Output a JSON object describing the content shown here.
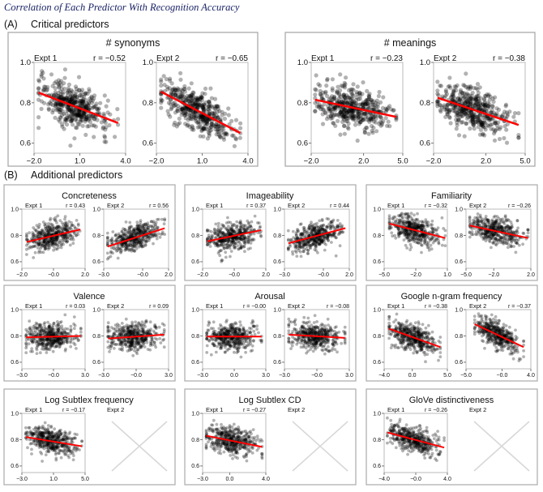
{
  "title": "Correlation of Each Predictor With Recognition Accuracy",
  "colors": {
    "points": "#000000",
    "fit_line": "#ff0000",
    "box_border": "#aaaaaa",
    "missing_cross": "#d8d8d8",
    "title": "#1b2466"
  },
  "chart_data": {
    "type": "scatter",
    "ylim": [
      0.55,
      1.0
    ],
    "yticks": [
      {
        "v": 1.0,
        "l": "1.0"
      },
      {
        "v": 0.8,
        "l": "0.8"
      },
      {
        "v": 0.6,
        "l": "0.6"
      }
    ],
    "sections": [
      {
        "letter": "(A)",
        "heading": "Critical predictors",
        "panels": [
          {
            "title": "# synonyms",
            "plots": [
              {
                "label": "Expt 1",
                "r": "r = −0.52",
                "xlim": [
                  -2,
                  4
                ],
                "xticks": [
                  {
                    "v": -2,
                    "l": "−2.0"
                  },
                  {
                    "v": 1,
                    "l": "1.0"
                  },
                  {
                    "v": 4,
                    "l": "4.0"
                  }
                ],
                "fit": [
                  [
                    -1.7,
                    0.85
                  ],
                  [
                    3.5,
                    0.7
                  ]
                ]
              },
              {
                "label": "Expt 2",
                "r": "r = −0.65",
                "xlim": [
                  -2,
                  4
                ],
                "xticks": [
                  {
                    "v": -2,
                    "l": "−2.0"
                  },
                  {
                    "v": 1,
                    "l": "1.0"
                  },
                  {
                    "v": 4,
                    "l": "4.0"
                  }
                ],
                "fit": [
                  [
                    -1.7,
                    0.855
                  ],
                  [
                    3.5,
                    0.65
                  ]
                ]
              }
            ]
          },
          {
            "title": "# meanings",
            "plots": [
              {
                "label": "Expt 1",
                "r": "r = −0.23",
                "xlim": [
                  -2,
                  5
                ],
                "xticks": [
                  {
                    "v": -2,
                    "l": "−2.0"
                  },
                  {
                    "v": 2,
                    "l": "2.0"
                  },
                  {
                    "v": 5,
                    "l": "5.0"
                  }
                ],
                "fit": [
                  [
                    -1.7,
                    0.815
                  ],
                  [
                    4.5,
                    0.73
                  ]
                ]
              },
              {
                "label": "Expt 2",
                "r": "r = −0.38",
                "xlim": [
                  -2,
                  5
                ],
                "xticks": [
                  {
                    "v": -2,
                    "l": "−2.0"
                  },
                  {
                    "v": 2,
                    "l": "2.0"
                  },
                  {
                    "v": 5,
                    "l": "5.0"
                  }
                ],
                "fit": [
                  [
                    -1.7,
                    0.825
                  ],
                  [
                    4.5,
                    0.69
                  ]
                ]
              }
            ]
          }
        ]
      },
      {
        "letter": "(B)",
        "heading": "Additional predictors",
        "panels": [
          {
            "title": "Concreteness",
            "plots": [
              {
                "label": "Expt 1",
                "r": "r = 0.43",
                "xlim": [
                  -2,
                  2
                ],
                "xticks": [
                  {
                    "v": -2,
                    "l": "−2.0"
                  },
                  {
                    "v": 0,
                    "l": "−0.0"
                  },
                  {
                    "v": 2,
                    "l": "2.0"
                  }
                ],
                "fit": [
                  [
                    -1.7,
                    0.75
                  ],
                  [
                    1.7,
                    0.845
                  ]
                ]
              },
              {
                "label": "Expt 2",
                "r": "r = 0.56",
                "xlim": [
                  -3,
                  2
                ],
                "xticks": [
                  {
                    "v": -3,
                    "l": "−3.0"
                  },
                  {
                    "v": 0,
                    "l": "−0.0"
                  },
                  {
                    "v": 2,
                    "l": "2.0"
                  }
                ],
                "fit": [
                  [
                    -2.7,
                    0.715
                  ],
                  [
                    1.7,
                    0.855
                  ]
                ]
              }
            ]
          },
          {
            "title": "Imageability",
            "plots": [
              {
                "label": "Expt 1",
                "r": "r = 0.37",
                "xlim": [
                  -2,
                  2
                ],
                "xticks": [
                  {
                    "v": -2,
                    "l": "−2.0"
                  },
                  {
                    "v": 0,
                    "l": "−0.0"
                  },
                  {
                    "v": 2,
                    "l": "2.0"
                  }
                ],
                "fit": [
                  [
                    -1.7,
                    0.755
                  ],
                  [
                    1.7,
                    0.84
                  ]
                ]
              },
              {
                "label": "Expt 2",
                "r": "r = 0.44",
                "xlim": [
                  -3,
                  2
                ],
                "xticks": [
                  {
                    "v": -3,
                    "l": "−3.0"
                  },
                  {
                    "v": 0,
                    "l": "−0.0"
                  },
                  {
                    "v": 2,
                    "l": "2.0"
                  }
                ],
                "fit": [
                  [
                    -2.7,
                    0.74
                  ],
                  [
                    1.7,
                    0.855
                  ]
                ]
              }
            ]
          },
          {
            "title": "Familiarity",
            "plots": [
              {
                "label": "Expt 1",
                "r": "r = −0.32",
                "xlim": [
                  -5,
                  1
                ],
                "xticks": [
                  {
                    "v": -5,
                    "l": "−5.0"
                  },
                  {
                    "v": -2,
                    "l": "−2.0"
                  },
                  {
                    "v": 1,
                    "l": "1.0"
                  }
                ],
                "fit": [
                  [
                    -4.5,
                    0.89
                  ],
                  [
                    0.8,
                    0.78
                  ]
                ]
              },
              {
                "label": "Expt 2",
                "r": "r = −0.26",
                "xlim": [
                  -5,
                  2
                ],
                "xticks": [
                  {
                    "v": -5,
                    "l": "−5.0"
                  },
                  {
                    "v": -2,
                    "l": "−2.0"
                  },
                  {
                    "v": 2,
                    "l": "2.0"
                  }
                ],
                "fit": [
                  [
                    -4.6,
                    0.875
                  ],
                  [
                    1.7,
                    0.78
                  ]
                ]
              }
            ]
          },
          {
            "title": "Valence",
            "plots": [
              {
                "label": "Expt 1",
                "r": "r = 0.03",
                "xlim": [
                  -3,
                  3
                ],
                "xticks": [
                  {
                    "v": -3,
                    "l": "−3.0"
                  },
                  {
                    "v": 0,
                    "l": "−0.0"
                  },
                  {
                    "v": 3,
                    "l": "3.0"
                  }
                ],
                "fit": [
                  [
                    -2.6,
                    0.79
                  ],
                  [
                    2.6,
                    0.8
                  ]
                ]
              },
              {
                "label": "Expt 2",
                "r": "r = 0.09",
                "xlim": [
                  -3,
                  3
                ],
                "xticks": [
                  {
                    "v": -3,
                    "l": "−3.0"
                  },
                  {
                    "v": 0,
                    "l": "−0.0"
                  },
                  {
                    "v": 3,
                    "l": "3.0"
                  }
                ],
                "fit": [
                  [
                    -2.6,
                    0.78
                  ],
                  [
                    2.6,
                    0.81
                  ]
                ]
              }
            ]
          },
          {
            "title": "Arousal",
            "plots": [
              {
                "label": "Expt 1",
                "r": "r = −0.00",
                "xlim": [
                  -3,
                  3
                ],
                "xticks": [
                  {
                    "v": -3,
                    "l": "−3.0"
                  },
                  {
                    "v": 0,
                    "l": "0.0"
                  },
                  {
                    "v": 3,
                    "l": "3.0"
                  }
                ],
                "fit": [
                  [
                    -2.6,
                    0.795
                  ],
                  [
                    2.6,
                    0.795
                  ]
                ]
              },
              {
                "label": "Expt 2",
                "r": "r = −0.08",
                "xlim": [
                  -3,
                  3
                ],
                "xticks": [
                  {
                    "v": -3,
                    "l": "−3.0"
                  },
                  {
                    "v": 0,
                    "l": "−0.0"
                  },
                  {
                    "v": 3,
                    "l": "3.0"
                  }
                ],
                "fit": [
                  [
                    -2.6,
                    0.81
                  ],
                  [
                    2.6,
                    0.785
                  ]
                ]
              }
            ]
          },
          {
            "title": "Google n-gram frequency",
            "plots": [
              {
                "label": "Expt 1",
                "r": "r = −0.38",
                "xlim": [
                  -4,
                  5
                ],
                "xticks": [
                  {
                    "v": -4,
                    "l": "−4.0"
                  },
                  {
                    "v": 0,
                    "l": "0.0"
                  },
                  {
                    "v": 5,
                    "l": "5.0"
                  }
                ],
                "fit": [
                  [
                    -3.3,
                    0.855
                  ],
                  [
                    4.0,
                    0.715
                  ]
                ]
              },
              {
                "label": "Expt 2",
                "r": "r = −0.37",
                "xlim": [
                  -5,
                  4
                ],
                "xticks": [
                  {
                    "v": -5,
                    "l": "−5.0"
                  },
                  {
                    "v": 0,
                    "l": "−0.0"
                  },
                  {
                    "v": 4,
                    "l": "4.0"
                  }
                ],
                "fit": [
                  [
                    -3.8,
                    0.89
                  ],
                  [
                    3.0,
                    0.715
                  ]
                ]
              }
            ]
          },
          {
            "title": "Log Subtlex frequency",
            "plots": [
              {
                "label": "Expt 1",
                "r": "r = −0.17",
                "xlim": [
                  -3,
                  5
                ],
                "xticks": [
                  {
                    "v": -3,
                    "l": "−3.0"
                  },
                  {
                    "v": 1,
                    "l": "1.0"
                  },
                  {
                    "v": 5,
                    "l": "5.0"
                  }
                ],
                "fit": [
                  [
                    -2.5,
                    0.82
                  ],
                  [
                    4.6,
                    0.75
                  ]
                ]
              },
              {
                "label": "Expt 2",
                "missing": true
              }
            ]
          },
          {
            "title": "Log Subtlex CD",
            "plots": [
              {
                "label": "Expt 1",
                "r": "r = −0.27",
                "xlim": [
                  -3,
                  4
                ],
                "xticks": [
                  {
                    "v": -3,
                    "l": "−3.0"
                  },
                  {
                    "v": 0,
                    "l": "0.0"
                  },
                  {
                    "v": 4,
                    "l": "4.0"
                  }
                ],
                "fit": [
                  [
                    -2.6,
                    0.83
                  ],
                  [
                    3.6,
                    0.745
                  ]
                ]
              },
              {
                "label": "Expt 2",
                "missing": true
              }
            ]
          },
          {
            "title": "GloVe distinctiveness",
            "plots": [
              {
                "label": "Expt 1",
                "r": "r = −0.26",
                "xlim": [
                  -4,
                  4
                ],
                "xticks": [
                  {
                    "v": -4,
                    "l": "−4.0"
                  },
                  {
                    "v": 0,
                    "l": "−0.0"
                  },
                  {
                    "v": 4,
                    "l": "4.0"
                  }
                ],
                "fit": [
                  [
                    -3.6,
                    0.855
                  ],
                  [
                    3.6,
                    0.74
                  ]
                ]
              },
              {
                "label": "Expt 2",
                "missing": true
              }
            ]
          }
        ]
      }
    ]
  }
}
